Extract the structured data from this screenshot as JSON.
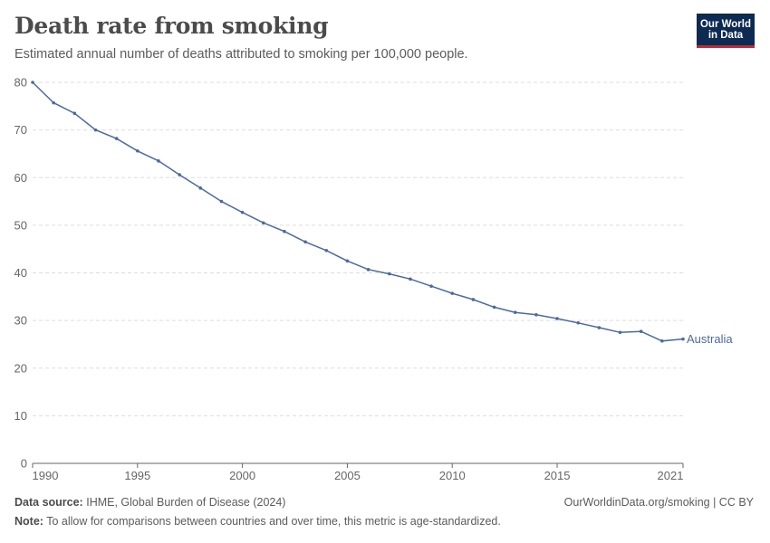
{
  "header": {
    "title": "Death rate from smoking",
    "subtitle": "Estimated annual number of deaths attributed to smoking per 100,000 people.",
    "logo_line1": "Our World",
    "logo_line2": "in Data"
  },
  "footer": {
    "source_label": "Data source:",
    "source_text": "IHME, Global Burden of Disease (2024)",
    "url_text": "OurWorldinData.org/smoking | CC BY",
    "note_label": "Note:",
    "note_text": "To allow for comparisons between countries and over time, this metric is age-standardized."
  },
  "chart_data": {
    "type": "line",
    "title": "Death rate from smoking",
    "x": [
      1990,
      1991,
      1992,
      1993,
      1994,
      1995,
      1996,
      1997,
      1998,
      1999,
      2000,
      2001,
      2002,
      2003,
      2004,
      2005,
      2006,
      2007,
      2008,
      2009,
      2010,
      2011,
      2012,
      2013,
      2014,
      2015,
      2016,
      2017,
      2018,
      2019,
      2020,
      2021
    ],
    "series": [
      {
        "name": "Australia",
        "color": "#4c6a9c",
        "values": [
          80.0,
          75.7,
          73.5,
          70.0,
          68.2,
          65.6,
          63.5,
          60.6,
          57.8,
          55.0,
          52.7,
          50.5,
          48.7,
          46.5,
          44.7,
          42.5,
          40.7,
          39.8,
          38.7,
          37.2,
          35.7,
          34.4,
          32.8,
          31.7,
          31.2,
          30.4,
          29.5,
          28.5,
          27.5,
          27.7,
          25.7,
          26.1
        ]
      }
    ],
    "xticks": [
      "1990",
      "1995",
      "2000",
      "2005",
      "2010",
      "2015",
      "2021"
    ],
    "xtick_values": [
      1990,
      1995,
      2000,
      2005,
      2010,
      2015,
      2021
    ],
    "yticks": [
      "0",
      "10",
      "20",
      "30",
      "40",
      "50",
      "60",
      "70",
      "80"
    ],
    "ytick_values": [
      0,
      10,
      20,
      30,
      40,
      50,
      60,
      70,
      80
    ],
    "xlim": [
      1990,
      2021
    ],
    "ylim": [
      0,
      80
    ],
    "grid": "horizontal dashed",
    "colors": {
      "line": "#4c6a9c",
      "grid": "#dddddd",
      "axis": "#666666"
    }
  }
}
